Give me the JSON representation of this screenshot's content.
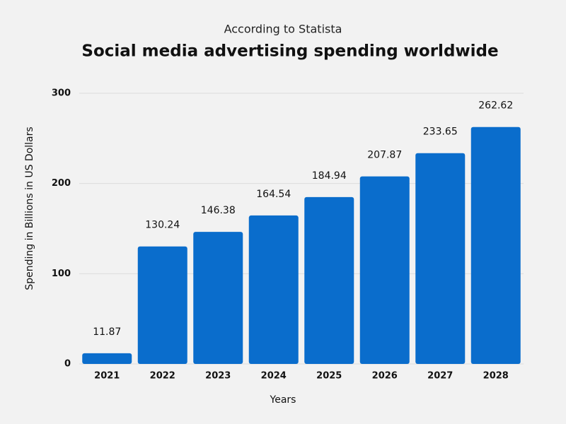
{
  "chart_data": {
    "type": "bar",
    "subtitle": "According to Statista",
    "title": "Social media advertising spending worldwide",
    "y_label": "Spending in Billions in US Dollars",
    "x_label": "Years",
    "categories": [
      "2021",
      "2022",
      "2023",
      "2024",
      "2025",
      "2026",
      "2027",
      "2028"
    ],
    "values": [
      11.87,
      130.24,
      146.38,
      164.54,
      184.94,
      207.87,
      233.65,
      262.62
    ],
    "color": "#0a6dcc",
    "ylim": [
      0,
      300
    ],
    "yticks": [
      0,
      100,
      200,
      300
    ],
    "grid": true
  }
}
